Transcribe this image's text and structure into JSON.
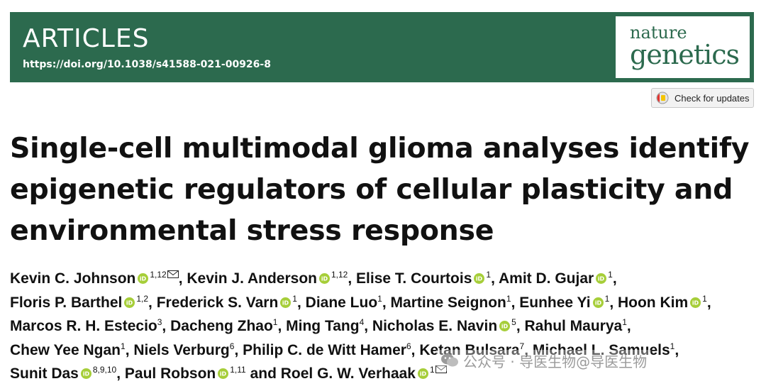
{
  "header": {
    "section_label": "ARTICLES",
    "doi": "https://doi.org/10.1038/s41588-021-00926-8",
    "journal_logo_line1": "nature",
    "journal_logo_line2": "genetics",
    "banner_color": "#2c6a4e"
  },
  "check_updates": {
    "label": "Check for updates",
    "icon": "check-updates-icon"
  },
  "title_lines": [
    "Single-cell multimodal glioma analyses identify",
    "epigenetic regulators of cellular plasticity and",
    "environmental stress response"
  ],
  "authors": [
    {
      "name": "Kevin C. Johnson",
      "sup": "1,12",
      "orcid": true,
      "corresponding": true
    },
    {
      "name": "Kevin J. Anderson",
      "sup": "1,12",
      "orcid": true
    },
    {
      "name": "Elise T. Courtois",
      "sup": "1",
      "orcid": true
    },
    {
      "name": "Amit D. Gujar",
      "sup": "1",
      "orcid": true
    },
    {
      "name": "Floris P. Barthel",
      "sup": "1,2",
      "orcid": true
    },
    {
      "name": "Frederick S. Varn",
      "sup": "1",
      "orcid": true
    },
    {
      "name": "Diane Luo",
      "sup": "1",
      "orcid": false
    },
    {
      "name": "Martine Seignon",
      "sup": "1",
      "orcid": false
    },
    {
      "name": "Eunhee Yi",
      "sup": "1",
      "orcid": true
    },
    {
      "name": "Hoon Kim",
      "sup": "1",
      "orcid": true
    },
    {
      "name": "Marcos R. H. Estecio",
      "sup": "3",
      "orcid": false
    },
    {
      "name": "Dacheng Zhao",
      "sup": "1",
      "orcid": false
    },
    {
      "name": "Ming Tang",
      "sup": "4",
      "orcid": false
    },
    {
      "name": "Nicholas E. Navin",
      "sup": "5",
      "orcid": true
    },
    {
      "name": "Rahul Maurya",
      "sup": "1",
      "orcid": false
    },
    {
      "name": "Chew Yee Ngan",
      "sup": "1",
      "orcid": false
    },
    {
      "name": "Niels Verburg",
      "sup": "6",
      "orcid": false
    },
    {
      "name": "Philip C. de Witt Hamer",
      "sup": "6",
      "orcid": false
    },
    {
      "name": "Ketan Bulsara",
      "sup": "7",
      "orcid": false
    },
    {
      "name": "Michael L. Samuels",
      "sup": "1",
      "orcid": false
    },
    {
      "name": "Sunit Das",
      "sup": "8,9,10",
      "orcid": true
    },
    {
      "name": "Paul Robson",
      "sup": "1,11",
      "orcid": true
    },
    {
      "name": "Roel G. W. Verhaak",
      "sup": "1",
      "orcid": true,
      "corresponding": true,
      "prefix": "and "
    }
  ],
  "author_line_breaks": [
    4,
    10,
    15,
    20
  ],
  "watermark": {
    "text": "公众号 · 导医生物@导医生物",
    "icon": "wechat-icon"
  }
}
